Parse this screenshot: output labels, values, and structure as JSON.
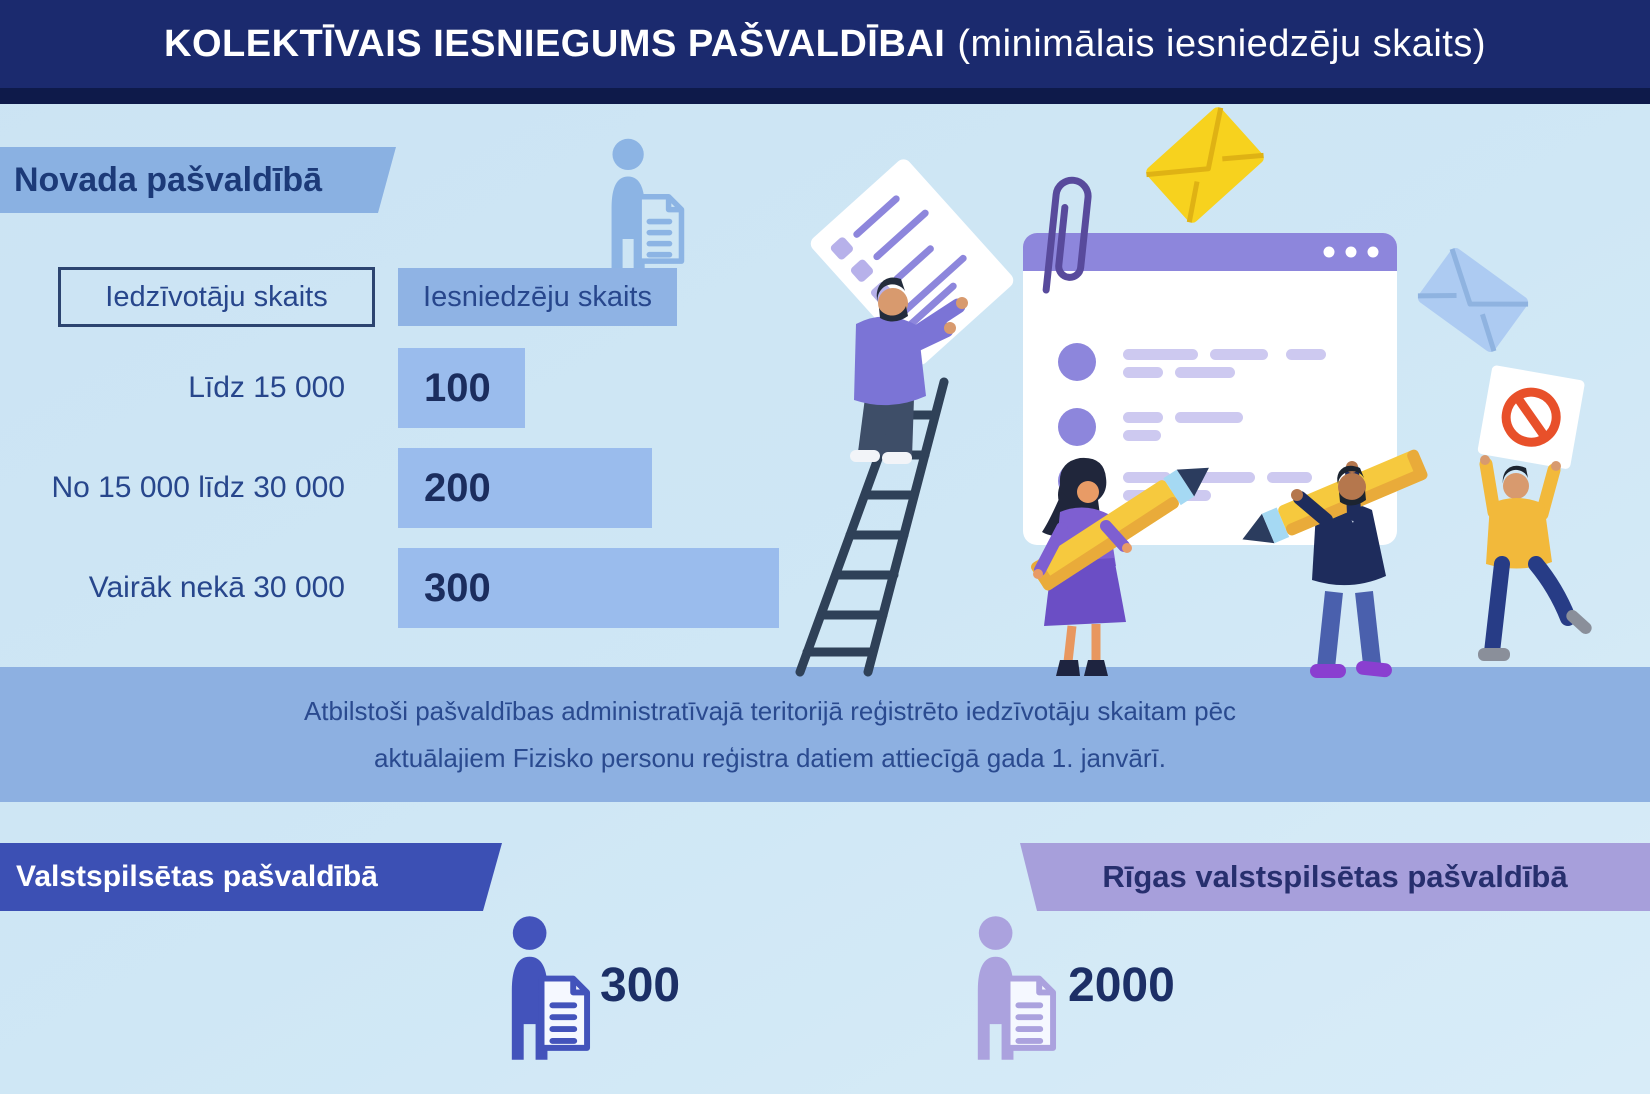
{
  "header": {
    "title_bold": "KOLEKTĪVAIS IESNIEGUMS PAŠVALDĪBAI",
    "title_regular": "(minimālais iesniedzēju skaits)"
  },
  "novada": {
    "banner_label": "Novada pašvaldībā",
    "table": {
      "col_population": "Iedzīvotāju skaits",
      "col_submitters": "Iesniedzēju skaits",
      "rows": [
        {
          "population": "Līdz 15 000",
          "value": 100
        },
        {
          "population": "No 15 000 līdz 30 000",
          "value": 200
        },
        {
          "population": "Vairāk nekā 30 000",
          "value": 300
        }
      ]
    }
  },
  "note": {
    "line1": "Atbilstoši pašvaldības administratīvajā teritorijā reģistrēto iedzīvotāju skaitam pēc",
    "line2": "aktuālajiem Fizisko personu reģistra datiem attiecīgā gada 1. janvārī."
  },
  "valstspilsetas": {
    "banner_label": "Valstspilsētas pašvaldībā",
    "value": 300
  },
  "riga": {
    "banner_label": "Rīgas valstspilsētas pašvaldībā",
    "value": 2000
  },
  "icons": {
    "top": "person-with-document-icon",
    "bottom_left": "person-with-document-icon",
    "bottom_right": "person-with-document-icon",
    "illustration": [
      "browser-window",
      "paperclip-icon",
      "envelope-yellow-icon",
      "envelope-blue-icon",
      "man-on-ladder",
      "woman-with-pencil",
      "man-with-pencil",
      "jumping-man-with-prohibition-sign"
    ]
  },
  "colors": {
    "background": "#cfe6f4",
    "header_navy": "#1b2a6e",
    "header_shadow": "#0e1a4a",
    "medium_blue": "#8fb3e4",
    "bar_blue": "#9abced",
    "band_blue": "#8db0e1",
    "text_navy": "#27468c",
    "text_dark_navy": "#1b2d5e",
    "indigo_banner": "#3c50b4",
    "purple_banner": "#a79fdb",
    "icon_indigo": "#4353bb",
    "icon_purple": "#aba2de",
    "icon_light_blue": "#8cb4e4",
    "pencil_yellow": "#f6c93e",
    "stop_red": "#e8502a"
  },
  "chart_data": {
    "type": "bar",
    "orientation": "horizontal",
    "title": "Novada pašvaldībā — minimālais iesniedzēju skaits",
    "categories": [
      "Līdz 15 000",
      "No 15 000 līdz 30 000",
      "Vairāk nekā 30 000"
    ],
    "values": [
      100,
      200,
      300
    ],
    "xlabel": "Iesniedzēju skaits",
    "ylabel": "Iedzīvotāju skaits",
    "extra_values": [
      {
        "label": "Valstspilsētas pašvaldībā",
        "value": 300
      },
      {
        "label": "Rīgas valstspilsētas pašvaldībā",
        "value": 2000
      }
    ]
  }
}
